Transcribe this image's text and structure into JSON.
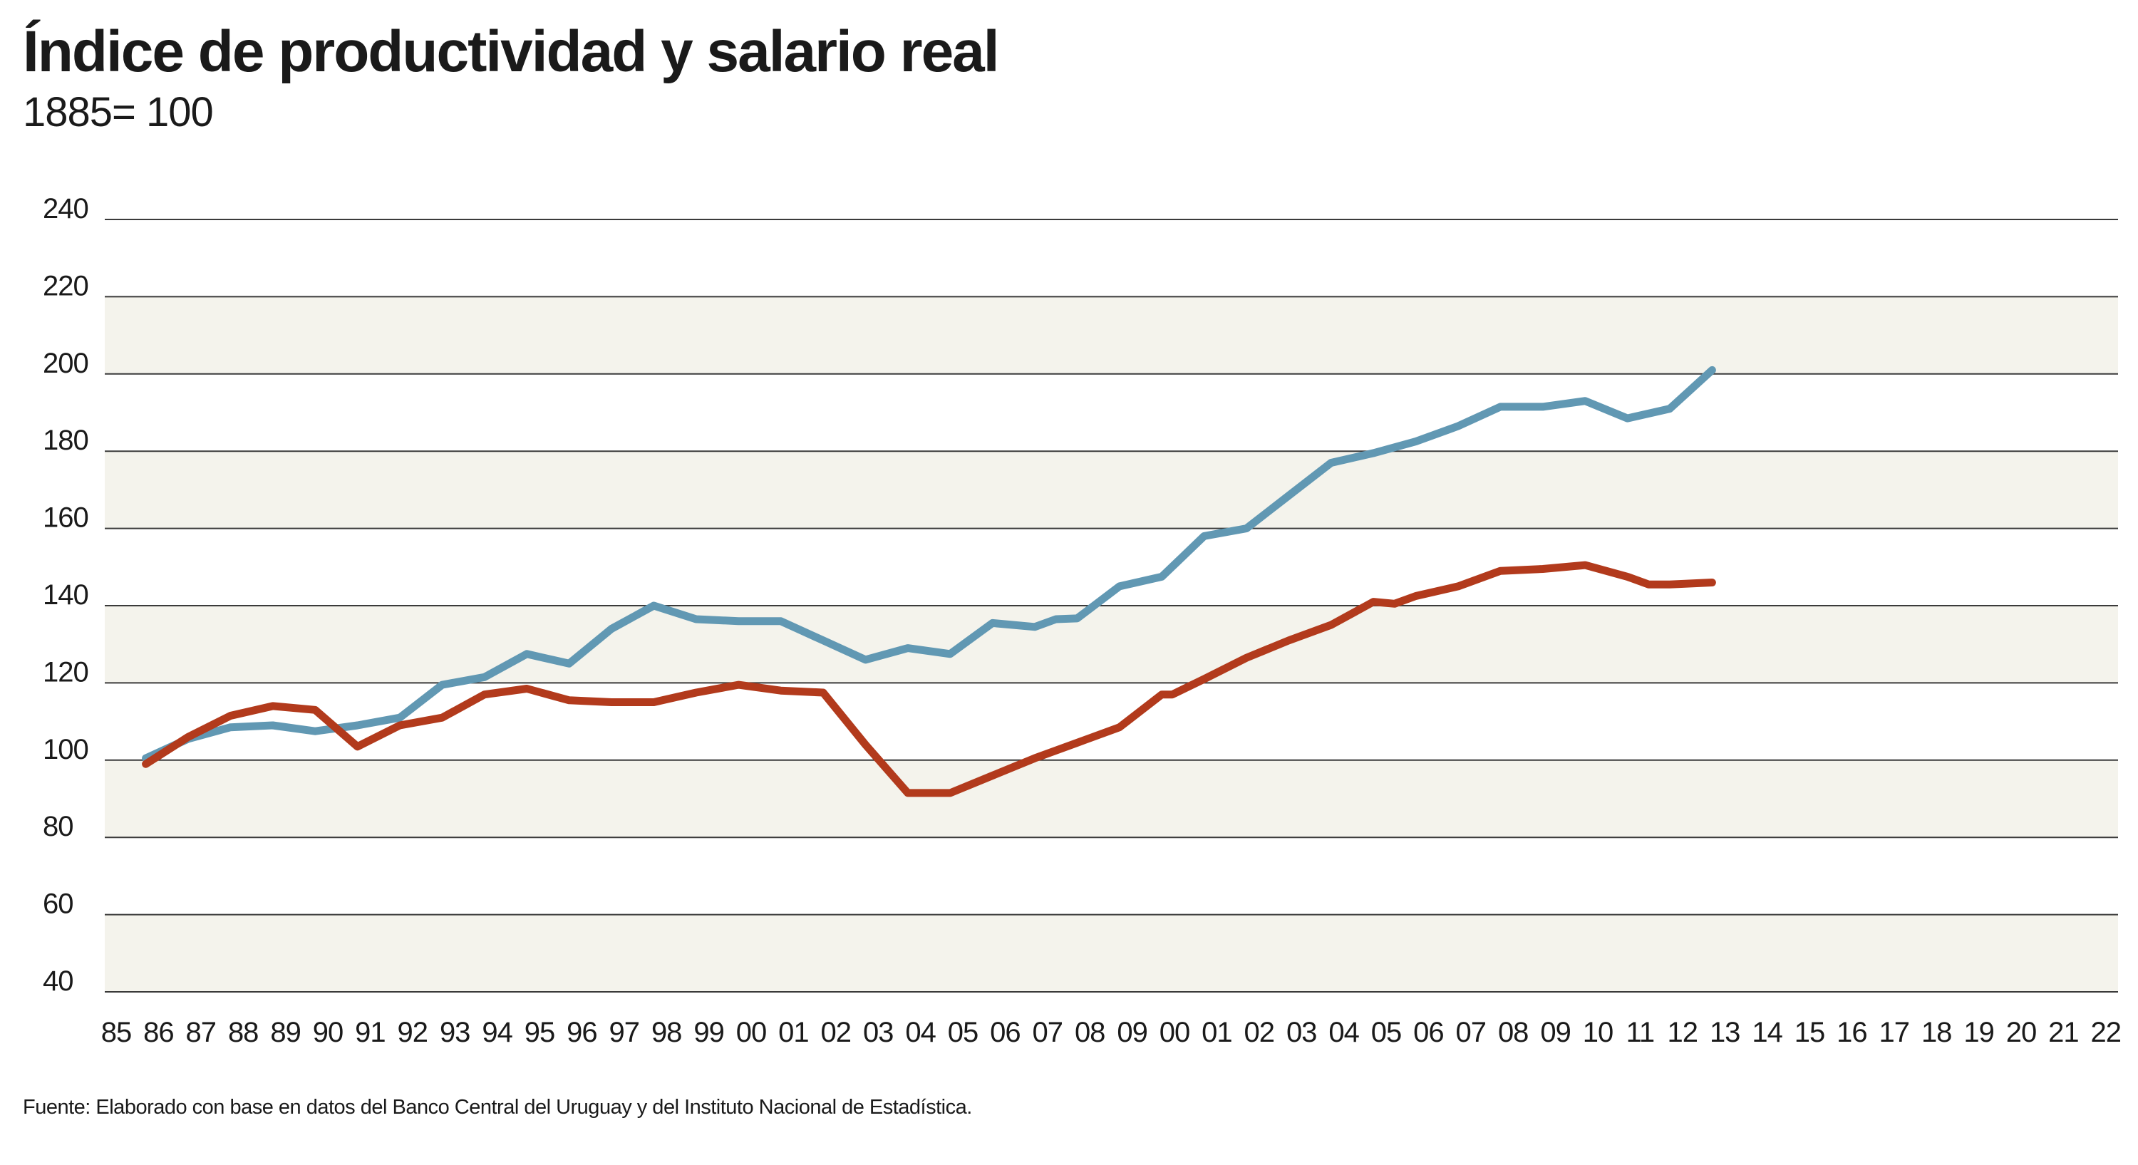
{
  "chart_data": {
    "type": "line",
    "title": "Índice de productividad y salario real",
    "subtitle": "1885= 100",
    "source": "Fuente: Elaborado con base en datos del Banco Central del Uruguay y del Instituto Nacional de Estadística.",
    "xlabel": "",
    "ylabel": "",
    "ylim": [
      40,
      240
    ],
    "yticks": [
      "240",
      "220",
      "200",
      "180",
      "160",
      "140",
      "120",
      "100",
      "80",
      "60",
      "40"
    ],
    "categories": [
      "85",
      "86",
      "87",
      "88",
      "89",
      "90",
      "91",
      "92",
      "93",
      "94",
      "95",
      "96",
      "97",
      "98",
      "99",
      "00",
      "01",
      "02",
      "03",
      "04",
      "05",
      "06",
      "07",
      "08",
      "09",
      "00",
      "01",
      "02",
      "03",
      "04",
      "05",
      "06",
      "07",
      "08",
      "09",
      "10",
      "11",
      "12",
      "13",
      "14",
      "15",
      "16",
      "17",
      "18",
      "19",
      "20",
      "21",
      "22"
    ],
    "grid": true,
    "band_color": "#f4f3ec",
    "series": [
      {
        "color": "#6198b3",
        "points": [
          [
            0.7,
            100.5
          ],
          [
            1.7,
            105.5
          ],
          [
            2.7,
            108.5
          ],
          [
            3.7,
            109
          ],
          [
            4.7,
            107.5
          ],
          [
            5.7,
            109
          ],
          [
            6.7,
            111
          ],
          [
            7.7,
            119.5
          ],
          [
            8.7,
            121.5
          ],
          [
            9.7,
            127.5
          ],
          [
            10.7,
            125
          ],
          [
            11.7,
            134
          ],
          [
            12.7,
            140
          ],
          [
            13.7,
            136.5
          ],
          [
            14.7,
            136
          ],
          [
            15.7,
            136
          ],
          [
            16.7,
            131
          ],
          [
            17.7,
            126
          ],
          [
            18.7,
            129
          ],
          [
            19.7,
            127.5
          ],
          [
            20.7,
            135.5
          ],
          [
            21.7,
            134.5
          ],
          [
            22.2,
            136.5
          ],
          [
            22.7,
            136.7
          ],
          [
            23.7,
            145
          ],
          [
            24.7,
            147.5
          ],
          [
            25.7,
            158
          ],
          [
            26.7,
            160
          ],
          [
            27.7,
            168.5
          ],
          [
            28.7,
            177
          ],
          [
            29.7,
            179.5
          ],
          [
            30.7,
            182.5
          ],
          [
            31.7,
            186.5
          ],
          [
            32.7,
            191.5
          ],
          [
            33.7,
            191.5
          ],
          [
            34.7,
            193
          ],
          [
            35.7,
            188.5
          ],
          [
            36.7,
            191
          ],
          [
            37.7,
            201
          ]
        ]
      },
      {
        "color": "#b23a1c",
        "points": [
          [
            0.7,
            99
          ],
          [
            1.7,
            106
          ],
          [
            2.7,
            111.5
          ],
          [
            3.7,
            114
          ],
          [
            4.7,
            113
          ],
          [
            5.7,
            103.5
          ],
          [
            6.7,
            109
          ],
          [
            7.7,
            111
          ],
          [
            8.7,
            117
          ],
          [
            9.7,
            118.5
          ],
          [
            10.7,
            115.5
          ],
          [
            11.7,
            115
          ],
          [
            12.7,
            115
          ],
          [
            13.7,
            117.5
          ],
          [
            14.7,
            119.5
          ],
          [
            15.7,
            118
          ],
          [
            16.7,
            117.5
          ],
          [
            17.7,
            104
          ],
          [
            18.7,
            91.5
          ],
          [
            19.7,
            91.5
          ],
          [
            20.7,
            96
          ],
          [
            21.7,
            100.5
          ],
          [
            22.7,
            104.5
          ],
          [
            23.7,
            108.5
          ],
          [
            24.7,
            117
          ],
          [
            24.95,
            117
          ],
          [
            25.7,
            121
          ],
          [
            26.7,
            126.5
          ],
          [
            27.7,
            131
          ],
          [
            28.7,
            135
          ],
          [
            29.7,
            141
          ],
          [
            30.2,
            140.5
          ],
          [
            30.7,
            142.5
          ],
          [
            31.7,
            145
          ],
          [
            32.7,
            149
          ],
          [
            33.7,
            149.5
          ],
          [
            34.7,
            150.5
          ],
          [
            35.7,
            147.5
          ],
          [
            36.2,
            145.5
          ],
          [
            36.7,
            145.5
          ],
          [
            37.7,
            146
          ]
        ]
      }
    ]
  }
}
